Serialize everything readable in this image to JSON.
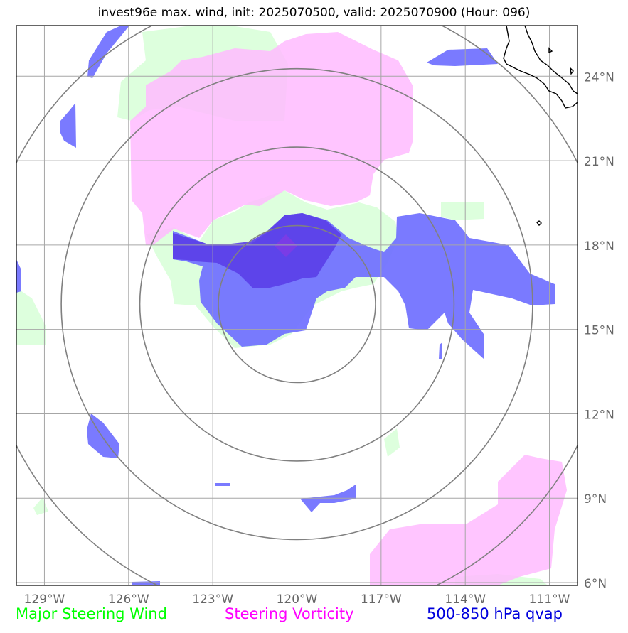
{
  "title": "invest96e max. wind, init: 2025070500, valid: 2025070900 (Hour: 096)",
  "map_extent": {
    "lon": [
      -130,
      -110
    ],
    "lat": [
      5.9,
      25.8
    ]
  },
  "storm_center": {
    "lon": -120,
    "lat": 15.9
  },
  "lon_ticks": [
    {
      "lon": -129,
      "label": "129°W"
    },
    {
      "lon": -126,
      "label": "126°W"
    },
    {
      "lon": -123,
      "label": "123°W"
    },
    {
      "lon": -120,
      "label": "120°W"
    },
    {
      "lon": -117,
      "label": "117°W"
    },
    {
      "lon": -114,
      "label": "114°W"
    },
    {
      "lon": -111,
      "label": "111°W"
    }
  ],
  "lat_ticks": [
    {
      "lat": 6,
      "label": "6°N"
    },
    {
      "lat": 9,
      "label": "9°N"
    },
    {
      "lat": 12,
      "label": "12°N"
    },
    {
      "lat": 15,
      "label": "15°N"
    },
    {
      "lat": 18,
      "label": "18°N"
    },
    {
      "lat": 21,
      "label": "21°N"
    },
    {
      "lat": 24,
      "label": "24°N"
    }
  ],
  "range_rings_deg": [
    2.8,
    5.6,
    8.4,
    11.2
  ],
  "legend": [
    {
      "id": "major_steering_wind",
      "label": "Major Steering Wind",
      "color": "#00ff00"
    },
    {
      "id": "steering_vorticity",
      "label": "Steering Vorticity",
      "color": "#ff00ff"
    },
    {
      "id": "qvap",
      "label": "500-850 hPa qvap",
      "color": "#0000dd"
    }
  ],
  "colors": {
    "green_fill": "#ddffdd",
    "magenta_fill": "#ffbbff",
    "blue_fill": "#6f6fff",
    "grid": "#a6a6a6",
    "rings": "#808080",
    "tick_label": "#666666"
  }
}
